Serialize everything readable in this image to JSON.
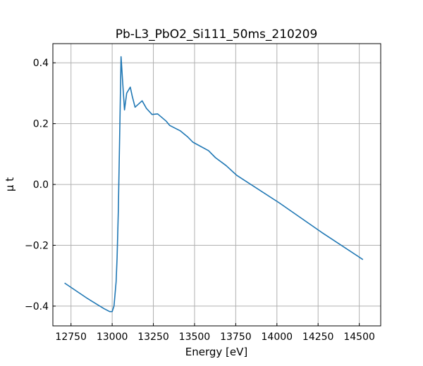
{
  "chart_data": {
    "type": "line",
    "title": "Pb-L3_PbO2_Si111_50ms_210209",
    "xlabel": "Energy [eV]",
    "ylabel": "μ t",
    "xlim": [
      12640,
      14630
    ],
    "ylim": [
      -0.465,
      0.463
    ],
    "grid": true,
    "x_ticks": [
      12750,
      13000,
      13250,
      13500,
      13750,
      14000,
      14250,
      14500
    ],
    "x_tick_labels": [
      "12750",
      "13000",
      "13250",
      "13500",
      "13750",
      "14000",
      "14250",
      "14500"
    ],
    "y_ticks": [
      -0.4,
      -0.2,
      0.0,
      0.2,
      0.4
    ],
    "y_tick_labels": [
      "−0.4",
      "−0.2",
      "0.0",
      "0.2",
      "0.4"
    ],
    "series": [
      {
        "name": "mu_t",
        "color": "#1f77b4",
        "x": [
          12711,
          12850,
          12950,
          12985,
          13000,
          13011,
          13024,
          13030,
          13037,
          13045,
          13054,
          13062,
          13075,
          13088,
          13110,
          13122,
          13139,
          13182,
          13208,
          13242,
          13276,
          13328,
          13349,
          13414,
          13457,
          13490,
          13585,
          13627,
          13692,
          13756,
          14013,
          14270,
          14522
        ],
        "y": [
          -0.324,
          -0.375,
          -0.408,
          -0.418,
          -0.418,
          -0.4,
          -0.32,
          -0.24,
          -0.09,
          0.14,
          0.42,
          0.35,
          0.245,
          0.3,
          0.32,
          0.29,
          0.254,
          0.275,
          0.25,
          0.23,
          0.232,
          0.208,
          0.194,
          0.176,
          0.157,
          0.139,
          0.111,
          0.088,
          0.062,
          0.03,
          -0.06,
          -0.157,
          -0.247
        ]
      }
    ]
  }
}
